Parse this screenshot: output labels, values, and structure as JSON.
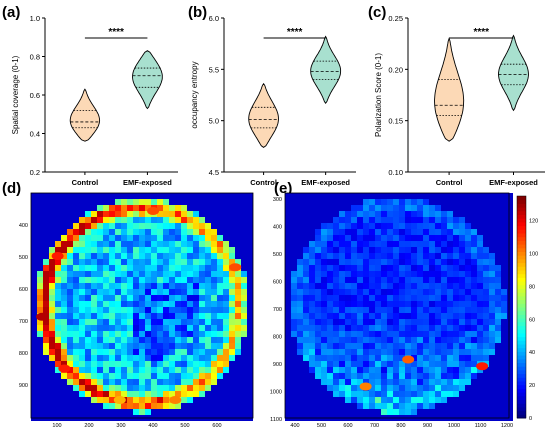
{
  "panels": {
    "a": {
      "label": "(a)"
    },
    "b": {
      "label": "(b)"
    },
    "c": {
      "label": "(c)"
    },
    "d": {
      "label": "(d)"
    },
    "e": {
      "label": "(e)"
    }
  },
  "chart_data": [
    {
      "type": "violin",
      "panel": "(a)",
      "categories": [
        "Control",
        "EMF-exposed"
      ],
      "ylabel": "Spatial coverage (0-1)",
      "ylim": [
        0.2,
        1.0
      ],
      "yticks": [
        "0.2",
        "0.4",
        "0.6",
        "0.8",
        "1.0"
      ],
      "significance": "****",
      "series": [
        {
          "category": "Control",
          "min": 0.36,
          "q1": 0.43,
          "median": 0.46,
          "q3": 0.52,
          "max": 0.63,
          "color": "#fcd9b6"
        },
        {
          "category": "EMF-exposed",
          "min": 0.53,
          "q1": 0.64,
          "median": 0.7,
          "q3": 0.74,
          "max": 0.83,
          "color": "#a8e0cf"
        }
      ]
    },
    {
      "type": "violin",
      "panel": "(b)",
      "categories": [
        "Control",
        "EMF-exposed"
      ],
      "ylabel": "occupancy entropy",
      "ylim": [
        4.5,
        6.0
      ],
      "yticks": [
        "4.5",
        "5.0",
        "5.5",
        "6.0"
      ],
      "significance": "****",
      "series": [
        {
          "category": "Control",
          "min": 4.74,
          "q1": 4.93,
          "median": 5.01,
          "q3": 5.13,
          "max": 5.36,
          "color": "#fcd9b6"
        },
        {
          "category": "EMF-exposed",
          "min": 5.17,
          "q1": 5.4,
          "median": 5.48,
          "q3": 5.58,
          "max": 5.82,
          "color": "#a8e0cf"
        }
      ]
    },
    {
      "type": "violin",
      "panel": "(c)",
      "categories": [
        "Control",
        "EMF-exposed"
      ],
      "ylabel": "Polarization Score (0-1)",
      "ylim": [
        0.1,
        0.25
      ],
      "yticks": [
        "0.10",
        "0.15",
        "0.20",
        "0.25"
      ],
      "significance": "****",
      "series": [
        {
          "category": "Control",
          "min": 0.13,
          "q1": 0.155,
          "median": 0.165,
          "q3": 0.19,
          "max": 0.23,
          "color": "#fcd9b6"
        },
        {
          "category": "EMF-exposed",
          "min": 0.16,
          "q1": 0.185,
          "median": 0.195,
          "q3": 0.205,
          "max": 0.233,
          "color": "#a8e0cf"
        }
      ]
    },
    {
      "type": "heatmap",
      "panel": "(d)",
      "xticks": [
        "100",
        "200",
        "300",
        "400",
        "500",
        "600"
      ],
      "yticks": [
        "400",
        "500",
        "600",
        "700",
        "800",
        "900"
      ],
      "description_pattern": "ring"
    },
    {
      "type": "heatmap",
      "panel": "(e)",
      "xticks": [
        "400",
        "500",
        "600",
        "700",
        "800",
        "900",
        "1000",
        "1100",
        "1200"
      ],
      "yticks": [
        "300",
        "400",
        "500",
        "600",
        "700",
        "800",
        "900",
        "1000",
        "1100"
      ],
      "colorbar_ticks": [
        "0",
        "20",
        "40",
        "60",
        "80",
        "100",
        "120"
      ],
      "colorbar_range": [
        0,
        135
      ]
    }
  ]
}
